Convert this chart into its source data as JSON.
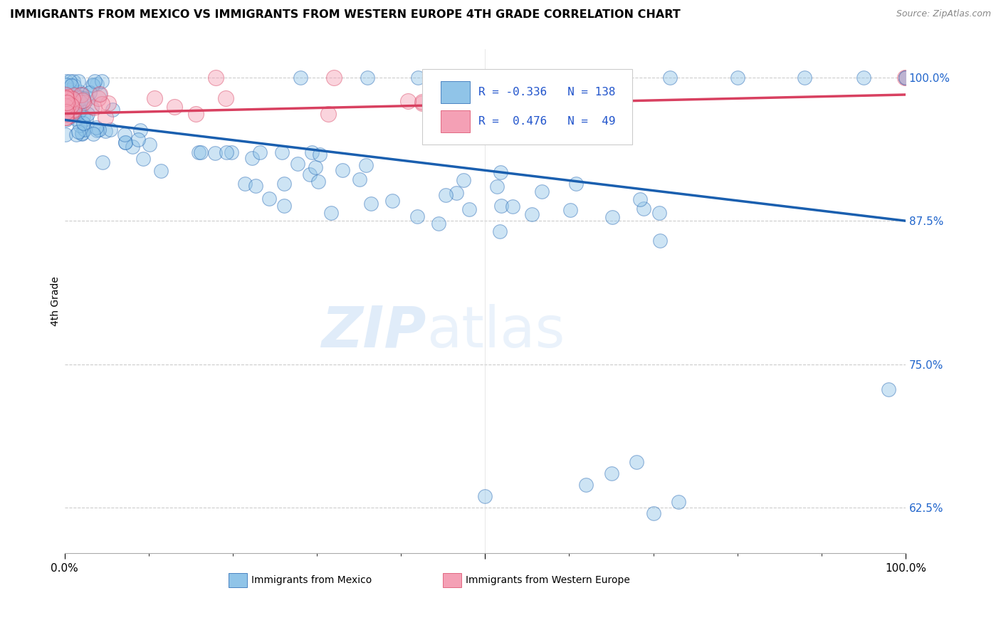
{
  "title": "IMMIGRANTS FROM MEXICO VS IMMIGRANTS FROM WESTERN EUROPE 4TH GRADE CORRELATION CHART",
  "source": "Source: ZipAtlas.com",
  "ylabel": "4th Grade",
  "y_tick_vals": [
    0.625,
    0.75,
    0.875,
    1.0
  ],
  "y_tick_labels": [
    "62.5%",
    "75.0%",
    "87.5%",
    "100.0%"
  ],
  "legend_blue_r": "-0.336",
  "legend_blue_n": "138",
  "legend_pink_r": "0.476",
  "legend_pink_n": "49",
  "legend_label_blue": "Immigrants from Mexico",
  "legend_label_pink": "Immigrants from Western Europe",
  "blue_color": "#90c4e8",
  "pink_color": "#f4a0b5",
  "blue_line_color": "#1a5faf",
  "pink_line_color": "#d84060",
  "blue_line": [
    0.0,
    1.0,
    0.963,
    0.875
  ],
  "pink_line": [
    0.0,
    1.0,
    0.9685,
    0.985
  ],
  "xlim": [
    0.0,
    1.0
  ],
  "ylim": [
    0.585,
    1.025
  ]
}
